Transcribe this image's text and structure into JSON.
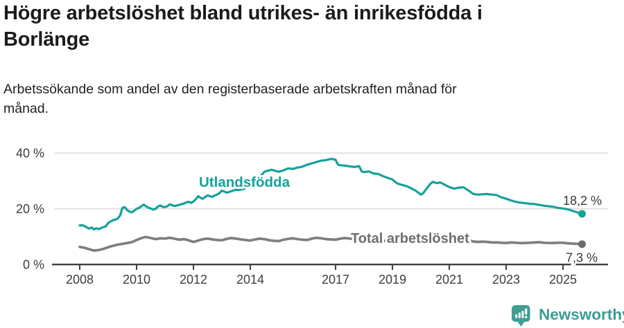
{
  "title": "Högre arbetslöshet bland utrikes- än inrikesfödda i\nBorlänge",
  "subtitle": "Arbetssökande som andel av den registerbaserade arbetskraften månad för\nmånad.",
  "footer": {
    "brand": "Newsworthy",
    "brand_color": "#3b9c94",
    "logo_icon": "newsworthy-pin-barchart"
  },
  "colors": {
    "title_text": "#1b1b1b",
    "axis_text": "#3d3d3d",
    "axis_line": "#3f3f3f",
    "gridline": "#d8d8d8",
    "annotation_text": "#383838",
    "teal": "#14a29a",
    "gray": "#7e7e7e"
  },
  "chart_data": {
    "type": "line",
    "title": "Högre arbetslöshet bland utrikes- än inrikesfödda i Borlänge",
    "subtitle": "Arbetssökande som andel av den registerbaserade arbetskraften månad för månad.",
    "grid": "horizontal",
    "legend_position": "inline-labels",
    "x_axis": {
      "ticks": [
        2008,
        2010,
        2012,
        2014,
        2017,
        2019,
        2021,
        2023,
        2025
      ],
      "range": [
        2007.8,
        2026.1
      ]
    },
    "y_axis": {
      "ticks": [
        0,
        20,
        40
      ],
      "tick_labels": [
        "0 %",
        "20 %",
        "40 %"
      ],
      "range": [
        0,
        43
      ],
      "unit": "%"
    },
    "series": [
      {
        "name": "Utlandsfödda",
        "color": "#14a29a",
        "dot_color": "#14a29a",
        "label_color": "#14a29a",
        "end_label": "18,2 %",
        "end_value": 18.2,
        "points": [
          [
            2008.0,
            14.0
          ],
          [
            2008.08,
            14.1
          ],
          [
            2008.17,
            13.8
          ],
          [
            2008.25,
            13.3
          ],
          [
            2008.33,
            12.9
          ],
          [
            2008.42,
            13.3
          ],
          [
            2008.5,
            12.6
          ],
          [
            2008.58,
            13.0
          ],
          [
            2008.67,
            12.7
          ],
          [
            2008.75,
            13.1
          ],
          [
            2008.83,
            13.4
          ],
          [
            2008.92,
            13.7
          ],
          [
            2009.0,
            14.9
          ],
          [
            2009.08,
            15.4
          ],
          [
            2009.17,
            15.9
          ],
          [
            2009.25,
            16.1
          ],
          [
            2009.33,
            16.4
          ],
          [
            2009.42,
            17.6
          ],
          [
            2009.5,
            20.3
          ],
          [
            2009.58,
            20.6
          ],
          [
            2009.67,
            19.5
          ],
          [
            2009.75,
            19.0
          ],
          [
            2009.83,
            18.7
          ],
          [
            2009.92,
            19.3
          ],
          [
            2010.0,
            20.0
          ],
          [
            2010.08,
            20.3
          ],
          [
            2010.17,
            20.9
          ],
          [
            2010.25,
            21.5
          ],
          [
            2010.33,
            20.9
          ],
          [
            2010.42,
            20.4
          ],
          [
            2010.5,
            20.1
          ],
          [
            2010.58,
            19.7
          ],
          [
            2010.67,
            20.0
          ],
          [
            2010.75,
            20.8
          ],
          [
            2010.83,
            21.2
          ],
          [
            2010.92,
            20.7
          ],
          [
            2011.0,
            20.6
          ],
          [
            2011.08,
            20.9
          ],
          [
            2011.17,
            21.6
          ],
          [
            2011.25,
            21.3
          ],
          [
            2011.33,
            21.0
          ],
          [
            2011.42,
            21.2
          ],
          [
            2011.5,
            21.4
          ],
          [
            2011.58,
            21.7
          ],
          [
            2011.67,
            21.9
          ],
          [
            2011.75,
            22.3
          ],
          [
            2011.83,
            22.5
          ],
          [
            2011.92,
            22.1
          ],
          [
            2012.0,
            22.6
          ],
          [
            2012.08,
            23.4
          ],
          [
            2012.17,
            24.5
          ],
          [
            2012.25,
            23.9
          ],
          [
            2012.33,
            23.6
          ],
          [
            2012.42,
            24.3
          ],
          [
            2012.5,
            24.8
          ],
          [
            2012.58,
            24.5
          ],
          [
            2012.67,
            24.3
          ],
          [
            2012.75,
            24.8
          ],
          [
            2012.83,
            25.1
          ],
          [
            2012.92,
            25.7
          ],
          [
            2013.0,
            26.5
          ],
          [
            2013.08,
            26.2
          ],
          [
            2013.17,
            25.8
          ],
          [
            2013.25,
            26.0
          ],
          [
            2013.33,
            26.3
          ],
          [
            2013.42,
            26.6
          ],
          [
            2013.5,
            26.8
          ],
          [
            2013.58,
            26.7
          ],
          [
            2013.67,
            26.9
          ],
          [
            2013.75,
            27.1
          ],
          [
            2013.83,
            27.4
          ],
          [
            2013.92,
            28.1
          ],
          [
            2014.0,
            29.0
          ],
          [
            2014.08,
            29.6
          ],
          [
            2014.17,
            30.3
          ],
          [
            2014.25,
            30.8
          ],
          [
            2014.33,
            31.2
          ],
          [
            2014.42,
            32.4
          ],
          [
            2014.5,
            33.3
          ],
          [
            2014.58,
            33.6
          ],
          [
            2014.67,
            33.8
          ],
          [
            2014.75,
            34.0
          ],
          [
            2014.83,
            33.8
          ],
          [
            2014.92,
            33.5
          ],
          [
            2015.0,
            33.3
          ],
          [
            2015.17,
            33.8
          ],
          [
            2015.33,
            34.5
          ],
          [
            2015.5,
            34.3
          ],
          [
            2015.67,
            34.8
          ],
          [
            2015.83,
            35.1
          ],
          [
            2016.0,
            35.8
          ],
          [
            2016.17,
            36.3
          ],
          [
            2016.33,
            36.8
          ],
          [
            2016.5,
            37.3
          ],
          [
            2016.67,
            37.5
          ],
          [
            2016.83,
            37.9
          ],
          [
            2016.92,
            37.8
          ],
          [
            2017.0,
            37.6
          ],
          [
            2017.08,
            35.9
          ],
          [
            2017.17,
            35.6
          ],
          [
            2017.33,
            35.5
          ],
          [
            2017.5,
            35.2
          ],
          [
            2017.67,
            35.0
          ],
          [
            2017.83,
            35.3
          ],
          [
            2017.92,
            33.4
          ],
          [
            2018.0,
            33.2
          ],
          [
            2018.17,
            33.4
          ],
          [
            2018.33,
            32.7
          ],
          [
            2018.5,
            32.5
          ],
          [
            2018.67,
            31.7
          ],
          [
            2018.83,
            31.1
          ],
          [
            2019.0,
            30.5
          ],
          [
            2019.08,
            29.8
          ],
          [
            2019.17,
            29.1
          ],
          [
            2019.33,
            28.6
          ],
          [
            2019.5,
            28.1
          ],
          [
            2019.67,
            27.3
          ],
          [
            2019.83,
            26.4
          ],
          [
            2020.0,
            25.1
          ],
          [
            2020.08,
            25.6
          ],
          [
            2020.17,
            26.8
          ],
          [
            2020.33,
            28.9
          ],
          [
            2020.42,
            29.7
          ],
          [
            2020.5,
            29.4
          ],
          [
            2020.58,
            29.2
          ],
          [
            2020.67,
            29.5
          ],
          [
            2020.83,
            28.7
          ],
          [
            2020.92,
            28.2
          ],
          [
            2021.0,
            27.8
          ],
          [
            2021.17,
            27.2
          ],
          [
            2021.33,
            27.6
          ],
          [
            2021.5,
            27.7
          ],
          [
            2021.67,
            26.6
          ],
          [
            2021.83,
            25.4
          ],
          [
            2021.92,
            25.2
          ],
          [
            2022.0,
            25.1
          ],
          [
            2022.17,
            25.2
          ],
          [
            2022.33,
            25.3
          ],
          [
            2022.5,
            25.1
          ],
          [
            2022.67,
            24.9
          ],
          [
            2022.83,
            24.1
          ],
          [
            2023.0,
            23.6
          ],
          [
            2023.17,
            23.0
          ],
          [
            2023.33,
            22.5
          ],
          [
            2023.5,
            22.2
          ],
          [
            2023.67,
            22.0
          ],
          [
            2023.83,
            21.8
          ],
          [
            2024.0,
            21.7
          ],
          [
            2024.17,
            21.4
          ],
          [
            2024.33,
            21.1
          ],
          [
            2024.5,
            20.9
          ],
          [
            2024.67,
            20.7
          ],
          [
            2024.83,
            20.3
          ],
          [
            2025.0,
            20.1
          ],
          [
            2025.17,
            19.8
          ],
          [
            2025.33,
            19.3
          ],
          [
            2025.5,
            18.7
          ],
          [
            2025.67,
            18.2
          ]
        ]
      },
      {
        "name": "Total arbetslöshet",
        "color": "#7e7e7e",
        "dot_color": "#6b6b6b",
        "label_color": "#6e6e6e",
        "end_label": "7,3 %",
        "end_value": 7.3,
        "points": [
          [
            2008.0,
            6.3
          ],
          [
            2008.17,
            6.0
          ],
          [
            2008.33,
            5.5
          ],
          [
            2008.5,
            5.0
          ],
          [
            2008.67,
            5.2
          ],
          [
            2008.83,
            5.6
          ],
          [
            2009.0,
            6.2
          ],
          [
            2009.17,
            6.7
          ],
          [
            2009.33,
            7.1
          ],
          [
            2009.5,
            7.4
          ],
          [
            2009.67,
            7.7
          ],
          [
            2009.83,
            8.0
          ],
          [
            2010.0,
            8.8
          ],
          [
            2010.17,
            9.5
          ],
          [
            2010.33,
            9.9
          ],
          [
            2010.5,
            9.5
          ],
          [
            2010.67,
            9.1
          ],
          [
            2010.83,
            9.4
          ],
          [
            2011.0,
            9.3
          ],
          [
            2011.17,
            9.6
          ],
          [
            2011.33,
            9.3
          ],
          [
            2011.5,
            8.9
          ],
          [
            2011.67,
            9.1
          ],
          [
            2011.83,
            8.7
          ],
          [
            2012.0,
            8.1
          ],
          [
            2012.17,
            8.6
          ],
          [
            2012.33,
            9.1
          ],
          [
            2012.5,
            9.3
          ],
          [
            2012.67,
            9.0
          ],
          [
            2012.83,
            8.8
          ],
          [
            2013.0,
            8.7
          ],
          [
            2013.17,
            9.2
          ],
          [
            2013.33,
            9.5
          ],
          [
            2013.5,
            9.3
          ],
          [
            2013.67,
            9.0
          ],
          [
            2013.83,
            8.8
          ],
          [
            2014.0,
            8.6
          ],
          [
            2014.17,
            9.0
          ],
          [
            2014.33,
            9.3
          ],
          [
            2014.5,
            9.1
          ],
          [
            2014.67,
            8.7
          ],
          [
            2014.83,
            8.5
          ],
          [
            2015.0,
            8.4
          ],
          [
            2015.17,
            8.9
          ],
          [
            2015.33,
            9.2
          ],
          [
            2015.5,
            9.4
          ],
          [
            2015.67,
            9.1
          ],
          [
            2015.83,
            8.9
          ],
          [
            2016.0,
            8.8
          ],
          [
            2016.17,
            9.3
          ],
          [
            2016.33,
            9.6
          ],
          [
            2016.5,
            9.4
          ],
          [
            2016.67,
            9.1
          ],
          [
            2016.83,
            9.0
          ],
          [
            2017.0,
            8.9
          ],
          [
            2017.17,
            9.3
          ],
          [
            2017.33,
            9.5
          ],
          [
            2017.5,
            9.3
          ],
          [
            2017.67,
            9.1
          ],
          [
            2017.83,
            8.9
          ],
          [
            2018.0,
            8.8
          ],
          [
            2018.17,
            9.1
          ],
          [
            2018.33,
            8.9
          ],
          [
            2018.5,
            8.7
          ],
          [
            2018.67,
            8.5
          ],
          [
            2018.83,
            8.4
          ],
          [
            2019.0,
            8.4
          ],
          [
            2019.17,
            8.6
          ],
          [
            2019.33,
            8.5
          ],
          [
            2019.5,
            8.4
          ],
          [
            2019.67,
            8.3
          ],
          [
            2019.83,
            8.3
          ],
          [
            2020.0,
            8.4
          ],
          [
            2020.17,
            9.0
          ],
          [
            2020.33,
            9.6
          ],
          [
            2020.5,
            9.8
          ],
          [
            2020.67,
            9.6
          ],
          [
            2020.83,
            9.4
          ],
          [
            2021.0,
            9.3
          ],
          [
            2021.17,
            9.2
          ],
          [
            2021.33,
            9.0
          ],
          [
            2021.5,
            8.8
          ],
          [
            2021.67,
            8.6
          ],
          [
            2021.83,
            8.3
          ],
          [
            2022.0,
            8.1
          ],
          [
            2022.17,
            8.2
          ],
          [
            2022.33,
            8.1
          ],
          [
            2022.5,
            7.9
          ],
          [
            2022.67,
            7.9
          ],
          [
            2022.83,
            7.8
          ],
          [
            2023.0,
            7.7
          ],
          [
            2023.17,
            7.9
          ],
          [
            2023.33,
            7.8
          ],
          [
            2023.5,
            7.7
          ],
          [
            2023.67,
            7.7
          ],
          [
            2023.83,
            7.8
          ],
          [
            2024.0,
            7.9
          ],
          [
            2024.17,
            8.0
          ],
          [
            2024.33,
            7.8
          ],
          [
            2024.5,
            7.7
          ],
          [
            2024.67,
            7.7
          ],
          [
            2024.83,
            7.8
          ],
          [
            2025.0,
            7.8
          ],
          [
            2025.17,
            7.6
          ],
          [
            2025.33,
            7.5
          ],
          [
            2025.5,
            7.4
          ],
          [
            2025.67,
            7.3
          ]
        ]
      }
    ]
  }
}
